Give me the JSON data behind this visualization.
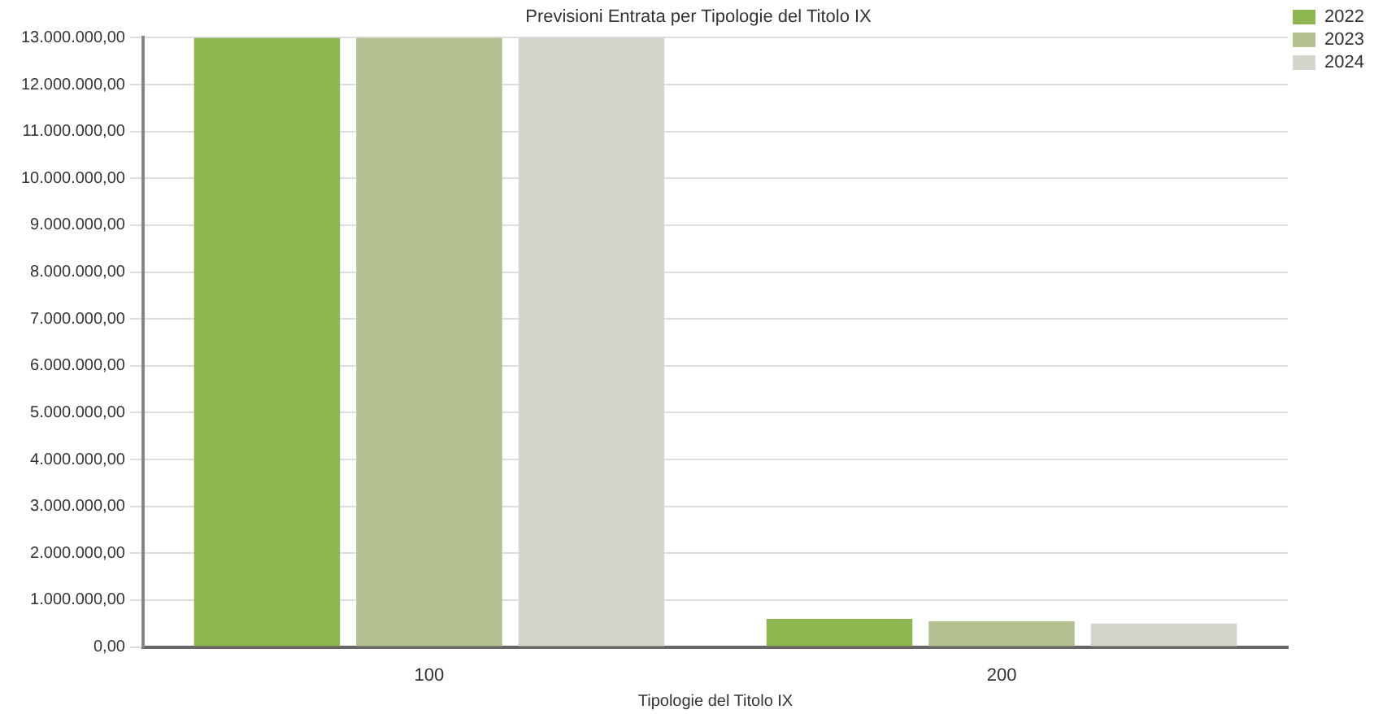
{
  "chart_data": {
    "type": "bar",
    "title": "Previsioni Entrata per Tipologie del Titolo IX",
    "xlabel": "Tipologie del Titolo IX",
    "categories": [
      "100",
      "200"
    ],
    "series": [
      {
        "name": "2022",
        "color": "#8db550",
        "values": [
          13000000,
          600000
        ]
      },
      {
        "name": "2023",
        "color": "#b3c08f",
        "values": [
          13000000,
          550000
        ]
      },
      {
        "name": "2024",
        "color": "#d3d6cb",
        "values": [
          13000000,
          500000
        ]
      }
    ],
    "ylim": [
      0,
      13000000
    ],
    "yticks": [
      {
        "value": 0,
        "label": "0,00"
      },
      {
        "value": 1000000,
        "label": "1.000.000,00"
      },
      {
        "value": 2000000,
        "label": "2.000.000,00"
      },
      {
        "value": 3000000,
        "label": "3.000.000,00"
      },
      {
        "value": 4000000,
        "label": "4.000.000,00"
      },
      {
        "value": 5000000,
        "label": "5.000.000,00"
      },
      {
        "value": 6000000,
        "label": "6.000.000,00"
      },
      {
        "value": 7000000,
        "label": "7.000.000,00"
      },
      {
        "value": 8000000,
        "label": "8.000.000,00"
      },
      {
        "value": 9000000,
        "label": "9.000.000,00"
      },
      {
        "value": 10000000,
        "label": "10.000.000,00"
      },
      {
        "value": 11000000,
        "label": "11.000.000,00"
      },
      {
        "value": 12000000,
        "label": "12.000.000,00"
      },
      {
        "value": 13000000,
        "label": "13.000.000,00"
      }
    ],
    "grid": "y",
    "legend": "top right"
  }
}
